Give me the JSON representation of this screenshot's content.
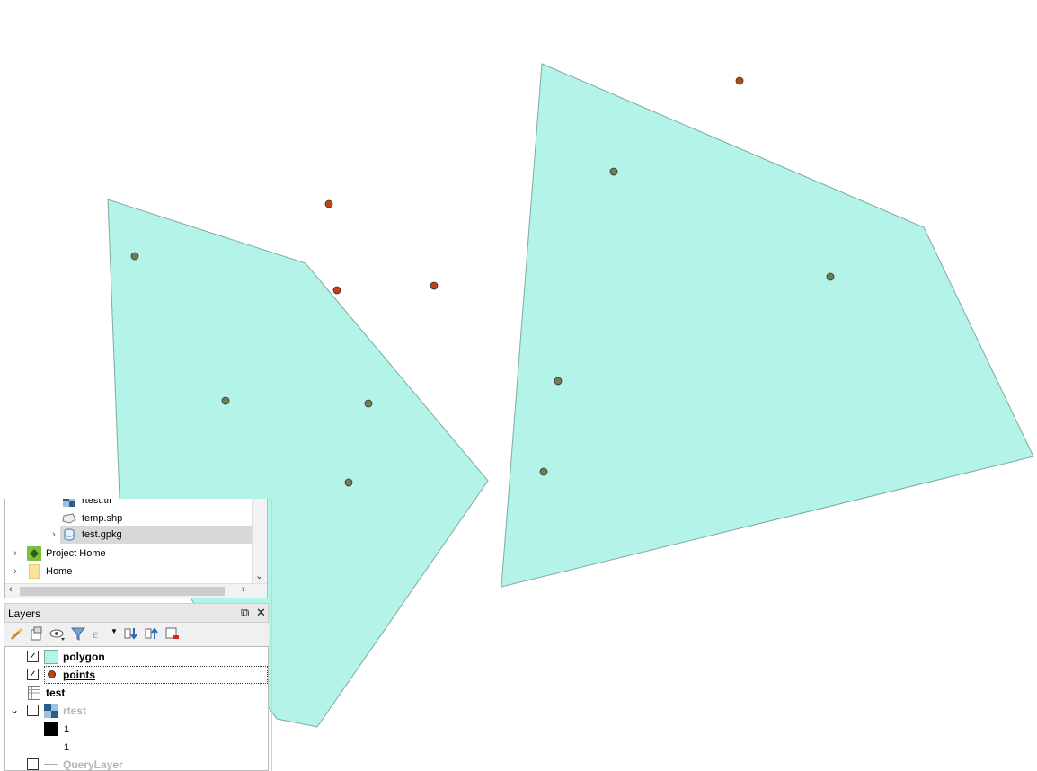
{
  "colors": {
    "polygon_fill": "#b3f3e8",
    "polygon_stroke": "#7fa9a3",
    "point_inside": "#6f7f55",
    "point_outside": "#c4420f",
    "selection": "#d8d8d8"
  },
  "browser": {
    "items": [
      {
        "label": "rtest.tif",
        "icon": "raster-icon"
      },
      {
        "label": "temp.shp",
        "icon": "vector-polygon-icon"
      },
      {
        "label": "test.gpkg",
        "icon": "geopackage-icon",
        "selected": true
      },
      {
        "label": "Project Home",
        "icon": "project-home-icon"
      },
      {
        "label": "Home",
        "icon": "folder-icon"
      }
    ]
  },
  "layers": {
    "title": "Layers",
    "tools": [
      "style-manager-icon",
      "add-group-icon",
      "visibility-icon",
      "filter-icon",
      "expression-filter-icon",
      "expand-all-icon",
      "collapse-all-icon",
      "remove-layer-icon"
    ],
    "items": [
      {
        "label": "polygon",
        "checked": true,
        "icon": "polygon-symbol-icon"
      },
      {
        "label": "points",
        "checked": true,
        "icon": "point-symbol-icon"
      },
      {
        "label": "test",
        "icon": "table-icon"
      },
      {
        "label": "rtest",
        "checked": false,
        "icon": "raster-icon"
      },
      {
        "label": "1",
        "icon": "legend-black-swatch-icon"
      },
      {
        "label": "1"
      },
      {
        "label": "QueryLayer",
        "checked": false,
        "icon": "line-icon"
      }
    ]
  }
}
